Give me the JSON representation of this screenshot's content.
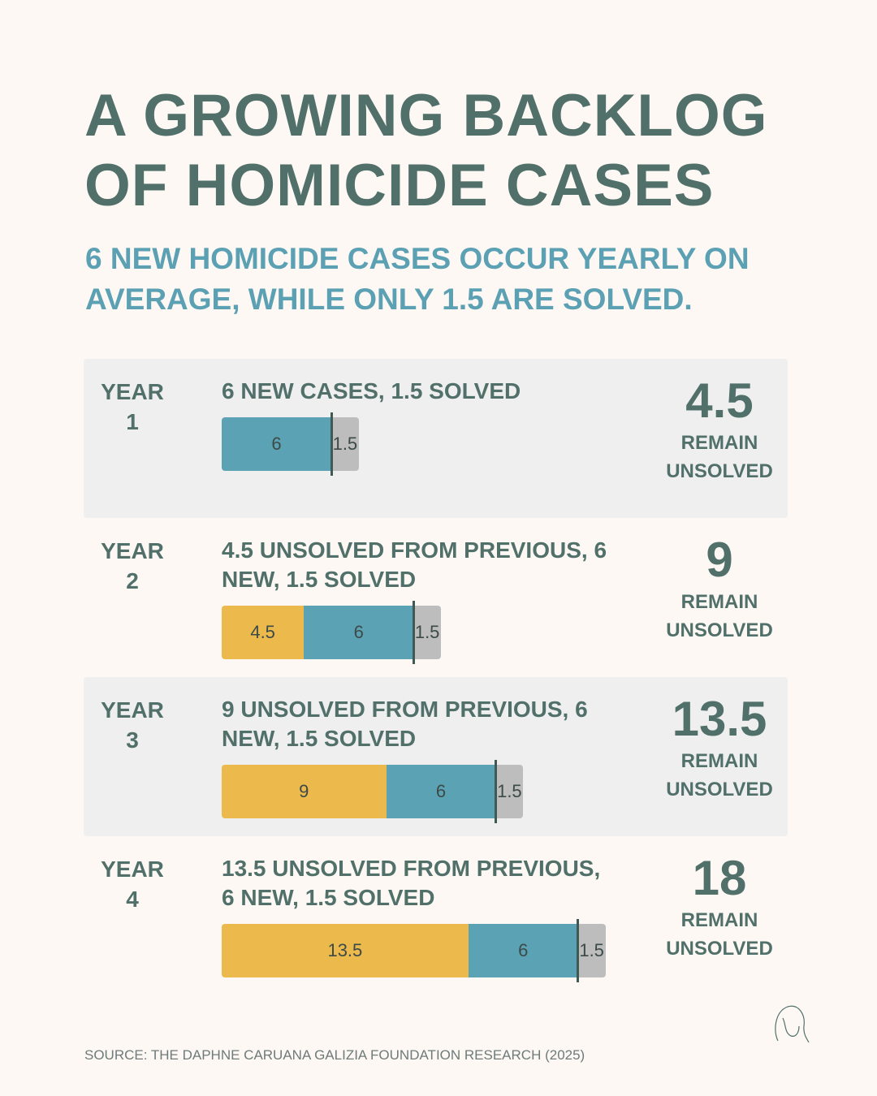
{
  "title": "A GROWING BACKLOG OF HOMICIDE CASES",
  "subtitle": "6 NEW HOMICIDE CASES OCCUR YEARLY ON AVERAGE, WHILE ONLY 1.5 ARE SOLVED.",
  "rows": [
    {
      "year": "YEAR 1",
      "description": "6 NEW CASES, 1.5 SOLVED",
      "segments": [
        {
          "value": 6,
          "color": "#5ba3b4"
        },
        {
          "value": 1.5,
          "color": "#bdbdbd"
        }
      ],
      "remaining": "4.5",
      "remaining_label": "REMAIN UNSOLVED"
    },
    {
      "year": "YEAR 2",
      "description": "4.5 UNSOLVED FROM PREVIOUS, 6 NEW, 1.5 SOLVED",
      "segments": [
        {
          "value": 4.5,
          "color": "#ecb94d"
        },
        {
          "value": 6,
          "color": "#5ba3b4"
        },
        {
          "value": 1.5,
          "color": "#bdbdbd"
        }
      ],
      "remaining": "9",
      "remaining_label": "REMAIN UNSOLVED"
    },
    {
      "year": "YEAR 3",
      "description": "9 UNSOLVED FROM PREVIOUS, 6 NEW, 1.5 SOLVED",
      "segments": [
        {
          "value": 9,
          "color": "#ecb94d"
        },
        {
          "value": 6,
          "color": "#5ba3b4"
        },
        {
          "value": 1.5,
          "color": "#bdbdbd"
        }
      ],
      "remaining": "13.5",
      "remaining_label": "REMAIN UNSOLVED"
    },
    {
      "year": "YEAR 4",
      "description": "13.5 UNSOLVED FROM PREVIOUS, 6 NEW, 1.5 SOLVED",
      "segments": [
        {
          "value": 13.5,
          "color": "#ecb94d"
        },
        {
          "value": 6,
          "color": "#5ba3b4"
        },
        {
          "value": 1.5,
          "color": "#bdbdbd"
        }
      ],
      "remaining": "18",
      "remaining_label": "REMAIN UNSOLVED"
    }
  ],
  "source": "SOURCE: THE DAPHNE CARUANA GALIZIA FOUNDATION RESEARCH (2025)"
}
